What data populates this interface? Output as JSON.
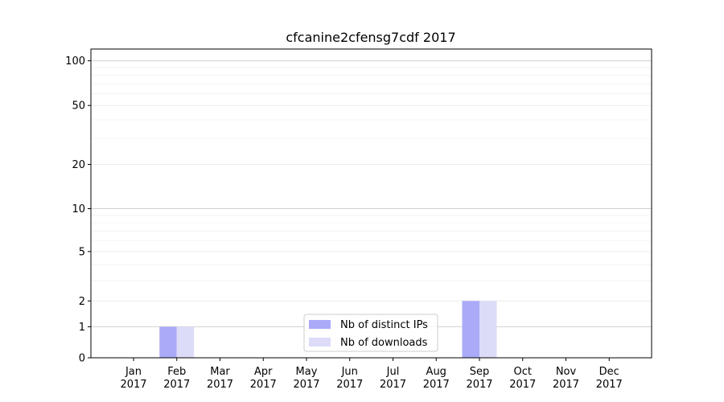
{
  "chart_data": {
    "type": "bar",
    "title": "cfcanine2cfensg7cdf 2017",
    "xlabel": "",
    "ylabel": "",
    "y_scale": "symlog",
    "ylim": [
      0,
      120
    ],
    "y_ticks": [
      0,
      1,
      2,
      5,
      10,
      20,
      50,
      100
    ],
    "grid": true,
    "legend_position": "bottom-center",
    "categories": [
      {
        "month": "Jan",
        "year": "2017"
      },
      {
        "month": "Feb",
        "year": "2017"
      },
      {
        "month": "Mar",
        "year": "2017"
      },
      {
        "month": "Apr",
        "year": "2017"
      },
      {
        "month": "May",
        "year": "2017"
      },
      {
        "month": "Jun",
        "year": "2017"
      },
      {
        "month": "Jul",
        "year": "2017"
      },
      {
        "month": "Aug",
        "year": "2017"
      },
      {
        "month": "Sep",
        "year": "2017"
      },
      {
        "month": "Oct",
        "year": "2017"
      },
      {
        "month": "Nov",
        "year": "2017"
      },
      {
        "month": "Dec",
        "year": "2017"
      }
    ],
    "series": [
      {
        "name": "Nb of distinct IPs",
        "color": "#aaaaf8",
        "values": [
          0,
          1,
          0,
          0,
          0,
          0,
          0,
          0,
          2,
          0,
          0,
          0
        ]
      },
      {
        "name": "Nb of downloads",
        "color": "#dcdcf8",
        "values": [
          0,
          1,
          0,
          0,
          0,
          0,
          0,
          0,
          2,
          0,
          0,
          0
        ]
      }
    ]
  }
}
